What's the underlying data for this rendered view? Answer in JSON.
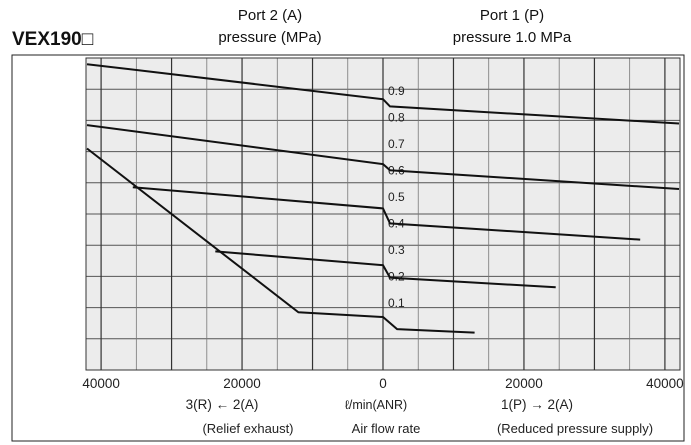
{
  "header": {
    "model": "VEX190□",
    "port2_line1": "Port 2 (A)",
    "port2_line2": "pressure (MPa)",
    "port1_line1": "Port 1 (P)",
    "port1_line2": "pressure 1.0 MPa"
  },
  "chart_data": {
    "type": "line",
    "xlim": [
      -42000,
      42000
    ],
    "ylim": [
      0,
      1.0
    ],
    "grid": true,
    "x_ticks": [
      {
        "value": -40000,
        "label": "40000"
      },
      {
        "value": -20000,
        "label": "20000"
      },
      {
        "value": 0,
        "label": "0"
      },
      {
        "value": 20000,
        "label": "20000"
      },
      {
        "value": 40000,
        "label": "40000"
      }
    ],
    "y_labels": [
      "0.9",
      "0.8",
      "0.7",
      "0.6",
      "0.5",
      "0.4",
      "0.3",
      "0.2",
      "0.1"
    ],
    "y_label_values": [
      0.895,
      0.81,
      0.725,
      0.64,
      0.555,
      0.47,
      0.385,
      0.3,
      0.215
    ],
    "x_axis_left_label": "3(R) ← 2(A)",
    "x_axis_center_label": "ℓ/min(ANR)",
    "x_axis_right_label": "1(P) → 2(A)",
    "x_axis_left_caption": "(Relief exhaust)",
    "x_axis_center_caption": "Air flow rate",
    "x_axis_right_caption": "(Reduced pressure supply)",
    "series": [
      {
        "x": [
          -42000,
          0,
          1000,
          42000
        ],
        "y": [
          0.98,
          0.868,
          0.845,
          0.79
        ]
      },
      {
        "x": [
          -42000,
          0,
          1000,
          42000
        ],
        "y": [
          0.785,
          0.66,
          0.64,
          0.58
        ]
      },
      {
        "x": [
          -35500,
          0,
          1000,
          36500
        ],
        "y": [
          0.586,
          0.518,
          0.47,
          0.418
        ]
      },
      {
        "x": [
          -23800,
          0,
          1000,
          24500
        ],
        "y": [
          0.38,
          0.336,
          0.296,
          0.265
        ]
      },
      {
        "x": [
          -42000,
          -12000,
          0,
          2000,
          13000
        ],
        "y": [
          0.71,
          0.185,
          0.17,
          0.131,
          0.12
        ]
      }
    ]
  }
}
